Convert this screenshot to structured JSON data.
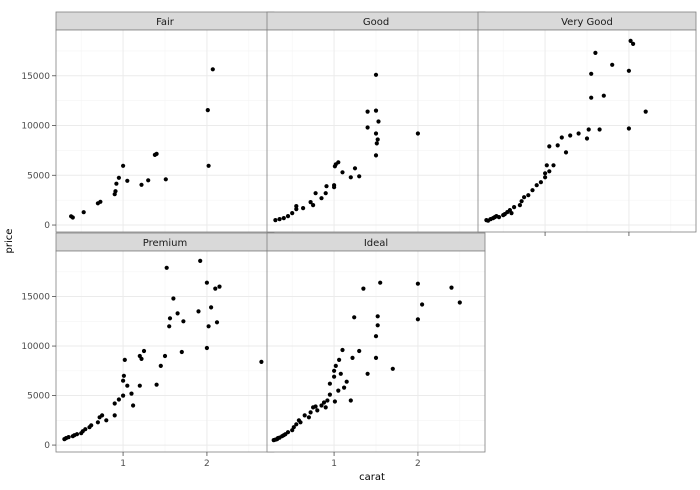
{
  "chart_data": {
    "type": "scatter",
    "facet_by": "cut",
    "xlabel": "carat",
    "ylabel": "price",
    "xlim": [
      0.2,
      2.8
    ],
    "ylim": [
      -700,
      19600
    ],
    "x_ticks": [
      1,
      2
    ],
    "y_ticks": [
      0,
      5000,
      10000,
      15000
    ],
    "grid": true,
    "legend": "none",
    "colors": {
      "panel_background": "#ffffff",
      "grid_major": "#ebebeb",
      "grid_minor": "#f4f4f4",
      "panel_border": "#7f7f7f",
      "strip_fill": "#d9d9d9",
      "point": "#000000"
    },
    "panels": [
      {
        "name": "Fair",
        "points": [
          [
            0.38,
            880
          ],
          [
            0.4,
            760
          ],
          [
            0.53,
            1290
          ],
          [
            0.7,
            2180
          ],
          [
            0.73,
            2330
          ],
          [
            0.9,
            3100
          ],
          [
            0.91,
            3400
          ],
          [
            0.92,
            4150
          ],
          [
            0.95,
            4750
          ],
          [
            1.0,
            5950
          ],
          [
            1.05,
            4450
          ],
          [
            1.22,
            4040
          ],
          [
            1.3,
            4500
          ],
          [
            1.38,
            7050
          ],
          [
            1.4,
            7150
          ],
          [
            1.51,
            4600
          ],
          [
            2.01,
            11550
          ],
          [
            2.02,
            5950
          ],
          [
            2.07,
            15650
          ]
        ]
      },
      {
        "name": "Good",
        "points": [
          [
            0.3,
            500
          ],
          [
            0.35,
            600
          ],
          [
            0.4,
            700
          ],
          [
            0.45,
            900
          ],
          [
            0.5,
            1200
          ],
          [
            0.55,
            1600
          ],
          [
            0.55,
            1900
          ],
          [
            0.63,
            1700
          ],
          [
            0.72,
            2300
          ],
          [
            0.75,
            2000
          ],
          [
            0.78,
            3200
          ],
          [
            0.85,
            2700
          ],
          [
            0.9,
            3200
          ],
          [
            0.91,
            3900
          ],
          [
            1.0,
            3800
          ],
          [
            1.0,
            4000
          ],
          [
            1.01,
            5900
          ],
          [
            1.02,
            6100
          ],
          [
            1.05,
            6300
          ],
          [
            1.1,
            5300
          ],
          [
            1.2,
            4800
          ],
          [
            1.25,
            5700
          ],
          [
            1.3,
            4900
          ],
          [
            1.4,
            9800
          ],
          [
            1.4,
            11400
          ],
          [
            1.5,
            15100
          ],
          [
            1.5,
            11500
          ],
          [
            1.5,
            9200
          ],
          [
            1.5,
            7000
          ],
          [
            1.51,
            8200
          ],
          [
            1.52,
            8600
          ],
          [
            1.53,
            10400
          ],
          [
            2.0,
            9200
          ]
        ]
      },
      {
        "name": "Very Good",
        "points": [
          [
            0.3,
            500
          ],
          [
            0.32,
            450
          ],
          [
            0.35,
            600
          ],
          [
            0.38,
            700
          ],
          [
            0.4,
            800
          ],
          [
            0.42,
            900
          ],
          [
            0.45,
            800
          ],
          [
            0.5,
            1000
          ],
          [
            0.52,
            1100
          ],
          [
            0.55,
            1300
          ],
          [
            0.58,
            1500
          ],
          [
            0.6,
            1200
          ],
          [
            0.63,
            1800
          ],
          [
            0.7,
            2000
          ],
          [
            0.72,
            2400
          ],
          [
            0.75,
            2800
          ],
          [
            0.8,
            3000
          ],
          [
            0.85,
            3500
          ],
          [
            0.9,
            4000
          ],
          [
            0.95,
            4300
          ],
          [
            1.0,
            4800
          ],
          [
            1.0,
            5200
          ],
          [
            1.02,
            6000
          ],
          [
            1.05,
            5400
          ],
          [
            1.05,
            7900
          ],
          [
            1.1,
            6000
          ],
          [
            1.15,
            8000
          ],
          [
            1.2,
            8800
          ],
          [
            1.25,
            7300
          ],
          [
            1.3,
            9000
          ],
          [
            1.4,
            9200
          ],
          [
            1.5,
            8700
          ],
          [
            1.52,
            9600
          ],
          [
            1.55,
            12800
          ],
          [
            1.55,
            15200
          ],
          [
            1.6,
            17300
          ],
          [
            1.65,
            9600
          ],
          [
            1.7,
            13000
          ],
          [
            1.8,
            16100
          ],
          [
            2.0,
            9700
          ],
          [
            2.0,
            15500
          ],
          [
            2.02,
            18500
          ],
          [
            2.05,
            18200
          ],
          [
            2.2,
            11400
          ]
        ]
      },
      {
        "name": "Premium",
        "points": [
          [
            0.3,
            600
          ],
          [
            0.32,
            700
          ],
          [
            0.35,
            800
          ],
          [
            0.4,
            900
          ],
          [
            0.42,
            1000
          ],
          [
            0.45,
            1100
          ],
          [
            0.5,
            1200
          ],
          [
            0.52,
            1400
          ],
          [
            0.55,
            1600
          ],
          [
            0.6,
            1800
          ],
          [
            0.62,
            2000
          ],
          [
            0.7,
            2300
          ],
          [
            0.72,
            2800
          ],
          [
            0.75,
            3000
          ],
          [
            0.8,
            2500
          ],
          [
            0.9,
            3000
          ],
          [
            0.9,
            4200
          ],
          [
            0.95,
            4600
          ],
          [
            1.0,
            5000
          ],
          [
            1.0,
            6500
          ],
          [
            1.01,
            7000
          ],
          [
            1.02,
            8600
          ],
          [
            1.05,
            6000
          ],
          [
            1.1,
            5200
          ],
          [
            1.12,
            4000
          ],
          [
            1.2,
            6000
          ],
          [
            1.2,
            9000
          ],
          [
            1.22,
            8700
          ],
          [
            1.25,
            9500
          ],
          [
            1.4,
            6100
          ],
          [
            1.45,
            8000
          ],
          [
            1.5,
            9000
          ],
          [
            1.52,
            17900
          ],
          [
            1.55,
            12000
          ],
          [
            1.56,
            12800
          ],
          [
            1.6,
            14800
          ],
          [
            1.65,
            13300
          ],
          [
            1.7,
            9400
          ],
          [
            1.72,
            12500
          ],
          [
            1.9,
            13500
          ],
          [
            1.92,
            18600
          ],
          [
            2.0,
            9800
          ],
          [
            2.0,
            16400
          ],
          [
            2.02,
            12000
          ],
          [
            2.05,
            13900
          ],
          [
            2.1,
            15800
          ],
          [
            2.12,
            12400
          ],
          [
            2.15,
            16000
          ],
          [
            2.65,
            8400
          ]
        ]
      },
      {
        "name": "Ideal",
        "points": [
          [
            0.28,
            500
          ],
          [
            0.3,
            550
          ],
          [
            0.32,
            600
          ],
          [
            0.33,
            700
          ],
          [
            0.35,
            750
          ],
          [
            0.38,
            900
          ],
          [
            0.4,
            1000
          ],
          [
            0.42,
            1100
          ],
          [
            0.45,
            1300
          ],
          [
            0.5,
            1500
          ],
          [
            0.52,
            1800
          ],
          [
            0.55,
            2100
          ],
          [
            0.58,
            2500
          ],
          [
            0.6,
            2300
          ],
          [
            0.65,
            3000
          ],
          [
            0.7,
            2800
          ],
          [
            0.72,
            3300
          ],
          [
            0.75,
            3800
          ],
          [
            0.78,
            3900
          ],
          [
            0.8,
            3500
          ],
          [
            0.85,
            4000
          ],
          [
            0.88,
            4300
          ],
          [
            0.9,
            3800
          ],
          [
            0.92,
            4500
          ],
          [
            0.95,
            5100
          ],
          [
            0.95,
            6200
          ],
          [
            1.0,
            6900
          ],
          [
            1.0,
            7500
          ],
          [
            1.01,
            4400
          ],
          [
            1.02,
            8000
          ],
          [
            1.05,
            5500
          ],
          [
            1.06,
            8600
          ],
          [
            1.08,
            7200
          ],
          [
            1.1,
            9600
          ],
          [
            1.12,
            5800
          ],
          [
            1.15,
            6400
          ],
          [
            1.2,
            4500
          ],
          [
            1.22,
            8800
          ],
          [
            1.24,
            12900
          ],
          [
            1.3,
            9500
          ],
          [
            1.35,
            15800
          ],
          [
            1.4,
            7200
          ],
          [
            1.5,
            8800
          ],
          [
            1.5,
            11000
          ],
          [
            1.52,
            12100
          ],
          [
            1.52,
            13000
          ],
          [
            1.55,
            16400
          ],
          [
            1.7,
            7700
          ],
          [
            2.0,
            12700
          ],
          [
            2.05,
            14200
          ],
          [
            2.0,
            16300
          ],
          [
            2.4,
            15900
          ],
          [
            2.5,
            14400
          ]
        ]
      }
    ]
  }
}
